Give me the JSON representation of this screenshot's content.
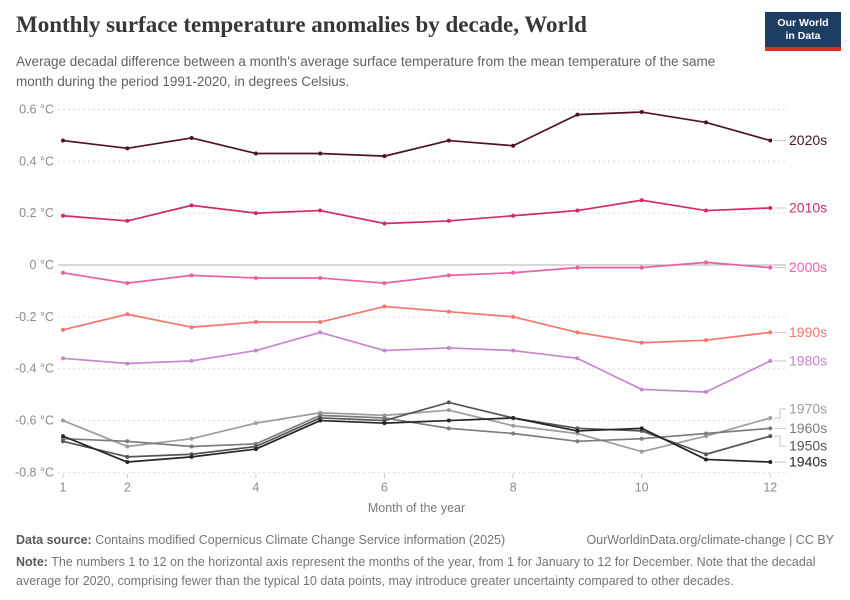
{
  "header": {
    "title": "Monthly surface temperature anomalies by decade, World",
    "subtitle": "Average decadal difference between a month's average surface temperature from the mean temperature of the same month during the period 1991-2020, in degrees Celsius.",
    "logo": {
      "line1": "Our World",
      "line2": "in Data"
    }
  },
  "chart_data": {
    "type": "line",
    "x": [
      1,
      2,
      3,
      4,
      5,
      6,
      7,
      8,
      9,
      10,
      11,
      12
    ],
    "xlabel": "Month of the year",
    "x_ticks": [
      1,
      2,
      4,
      6,
      8,
      10,
      12
    ],
    "ylim": [
      -0.8,
      0.6
    ],
    "y_tick_values": [
      0.6,
      0.4,
      0.2,
      0,
      -0.2,
      -0.4,
      -0.6,
      -0.8
    ],
    "y_tick_labels": [
      "0.6 °C",
      "0.4 °C",
      "0.2 °C",
      "0 °C",
      "-0.2 °C",
      "-0.4 °C",
      "-0.6 °C",
      "-0.8 °C"
    ],
    "grid": "dashed horizontal gridlines, solid zero line",
    "legend_position": "right end-of-line labels",
    "grid_color": "#dcdcdc",
    "zero_line_color": "#b0b0b0",
    "tick_color": "#c9c9c9",
    "connector_color": "#c6c6c6",
    "series": [
      {
        "name": "2020s",
        "color": "#4f1228",
        "label_dy": 0,
        "values": [
          0.48,
          0.45,
          0.49,
          0.43,
          0.43,
          0.42,
          0.48,
          0.46,
          0.58,
          0.59,
          0.55,
          0.48
        ]
      },
      {
        "name": "2010s",
        "color": "#d2296c",
        "label_dy": 0,
        "values": [
          0.19,
          0.17,
          0.23,
          0.2,
          0.21,
          0.16,
          0.17,
          0.19,
          0.21,
          0.25,
          0.21,
          0.22
        ]
      },
      {
        "name": "2000s",
        "color": "#e95fa7",
        "label_dy": 0,
        "values": [
          -0.03,
          -0.07,
          -0.04,
          -0.05,
          -0.05,
          -0.07,
          -0.04,
          -0.03,
          -0.01,
          -0.01,
          0.01,
          -0.01
        ]
      },
      {
        "name": "1990s",
        "color": "#f4756c",
        "label_dy": 0,
        "values": [
          -0.25,
          -0.19,
          -0.24,
          -0.22,
          -0.22,
          -0.16,
          -0.18,
          -0.2,
          -0.26,
          -0.3,
          -0.29,
          -0.26
        ]
      },
      {
        "name": "1980s",
        "color": "#c685ce",
        "label_dy": 0,
        "values": [
          -0.36,
          -0.38,
          -0.37,
          -0.33,
          -0.26,
          -0.33,
          -0.32,
          -0.33,
          -0.36,
          -0.48,
          -0.49,
          -0.37
        ]
      },
      {
        "name": "1970s",
        "color": "#9d9d9d",
        "label_dy": -9,
        "values": [
          -0.6,
          -0.7,
          -0.67,
          -0.61,
          -0.57,
          -0.58,
          -0.56,
          -0.62,
          -0.65,
          -0.72,
          -0.66,
          -0.59
        ]
      },
      {
        "name": "1960s",
        "color": "#7c7c7c",
        "label_dy": 0,
        "values": [
          -0.67,
          -0.68,
          -0.7,
          -0.69,
          -0.58,
          -0.59,
          -0.63,
          -0.65,
          -0.68,
          -0.67,
          -0.65,
          -0.63
        ]
      },
      {
        "name": "1950s",
        "color": "#555555",
        "label_dy": 10,
        "values": [
          -0.68,
          -0.74,
          -0.73,
          -0.7,
          -0.59,
          -0.6,
          -0.53,
          -0.59,
          -0.63,
          -0.64,
          -0.73,
          -0.66
        ]
      },
      {
        "name": "1940s",
        "color": "#262626",
        "label_dy": 0,
        "values": [
          -0.66,
          -0.76,
          -0.74,
          -0.71,
          -0.6,
          -0.61,
          -0.6,
          -0.59,
          -0.64,
          -0.63,
          -0.75,
          -0.76
        ]
      }
    ]
  },
  "footer": {
    "source_prefix": "Data source:",
    "source_text": " Contains modified Copernicus Climate Change Service information (2025)",
    "attribution": "OurWorldinData.org/climate-change | CC BY",
    "note_prefix": "Note:",
    "note_text": " The numbers 1 to 12 on the horizontal axis represent the months of the year, from 1 for January to 12 for December. Note that the decadal average for 2020, comprising fewer than the typical 10 data points, may introduce greater uncertainty compared to other decades."
  }
}
